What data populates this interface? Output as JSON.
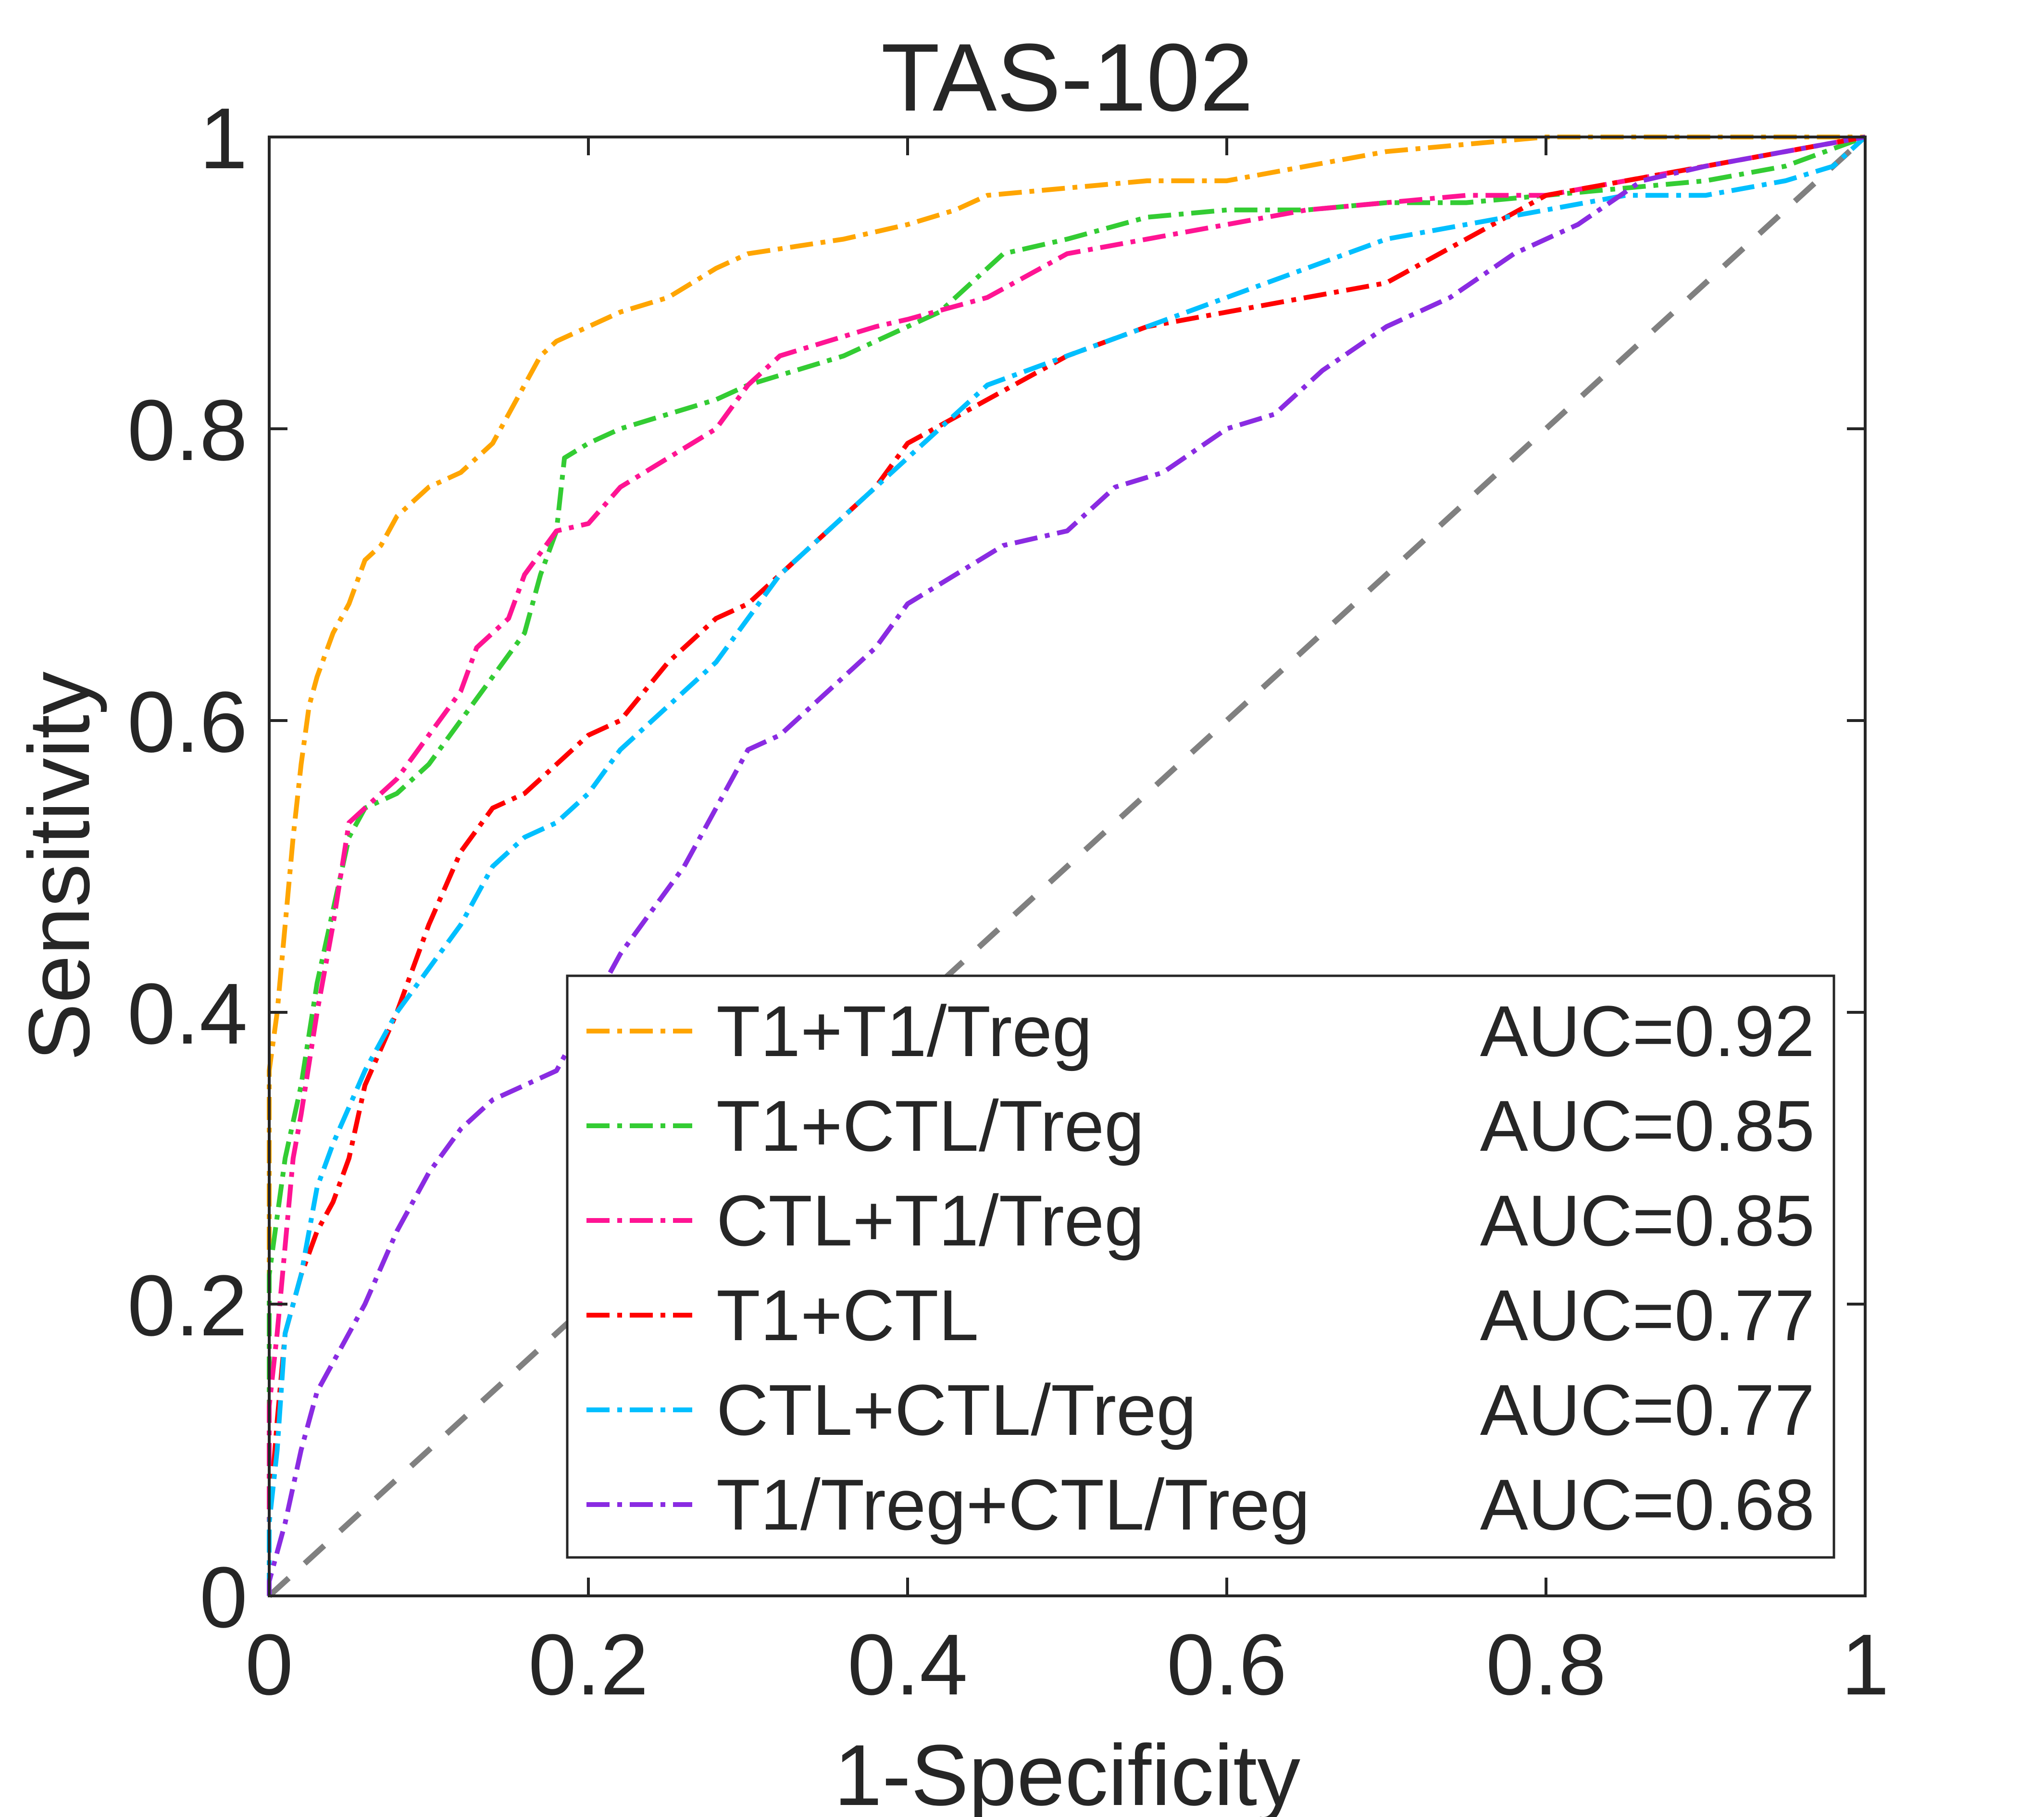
{
  "chart_data": {
    "type": "line",
    "title": "TAS-102",
    "xlabel": "1-Specificity",
    "ylabel": "Sensitivity",
    "xlim": [
      0,
      1
    ],
    "ylim": [
      0,
      1
    ],
    "xticks": [
      {
        "value": 0,
        "label": "0"
      },
      {
        "value": 0.2,
        "label": "0.2"
      },
      {
        "value": 0.4,
        "label": "0.4"
      },
      {
        "value": 0.6,
        "label": "0.6"
      },
      {
        "value": 0.8,
        "label": "0.8"
      },
      {
        "value": 1,
        "label": "1"
      }
    ],
    "yticks": [
      {
        "value": 0,
        "label": "0"
      },
      {
        "value": 0.2,
        "label": "0.2"
      },
      {
        "value": 0.4,
        "label": "0.4"
      },
      {
        "value": 0.6,
        "label": "0.6"
      },
      {
        "value": 0.8,
        "label": "0.8"
      },
      {
        "value": 1,
        "label": "1"
      }
    ],
    "grid": false,
    "legend_position": "bottom-right",
    "reference_line": {
      "x": [
        0,
        1
      ],
      "y": [
        0,
        1
      ],
      "color": "#808080",
      "style": "dashed"
    },
    "series": [
      {
        "name": "T1+T1/Treg",
        "auc_label": "AUC=0.92",
        "color": "#FFA500",
        "x": [
          0,
          0,
          0.005,
          0.01,
          0.015,
          0.02,
          0.025,
          0.03,
          0.04,
          0.05,
          0.06,
          0.07,
          0.08,
          0.1,
          0.12,
          0.14,
          0.15,
          0.16,
          0.17,
          0.18,
          0.2,
          0.22,
          0.25,
          0.28,
          0.3,
          0.33,
          0.36,
          0.4,
          0.43,
          0.45,
          0.5,
          0.55,
          0.6,
          0.65,
          0.7,
          0.75,
          0.8,
          0.85,
          0.9,
          1
        ],
        "y": [
          0,
          0.36,
          0.4,
          0.46,
          0.52,
          0.57,
          0.61,
          0.63,
          0.66,
          0.68,
          0.71,
          0.72,
          0.74,
          0.76,
          0.77,
          0.79,
          0.81,
          0.83,
          0.85,
          0.86,
          0.87,
          0.88,
          0.89,
          0.91,
          0.92,
          0.925,
          0.93,
          0.94,
          0.95,
          0.96,
          0.965,
          0.97,
          0.97,
          0.98,
          0.99,
          0.995,
          1,
          1,
          1,
          1
        ]
      },
      {
        "name": "T1+CTL/Treg",
        "auc_label": "AUC=0.85",
        "color": "#33CC33",
        "x": [
          0,
          0,
          0.005,
          0.01,
          0.02,
          0.03,
          0.04,
          0.05,
          0.06,
          0.08,
          0.1,
          0.12,
          0.14,
          0.16,
          0.17,
          0.18,
          0.185,
          0.2,
          0.22,
          0.25,
          0.28,
          0.3,
          0.33,
          0.36,
          0.38,
          0.42,
          0.44,
          0.46,
          0.48,
          0.5,
          0.55,
          0.6,
          0.65,
          0.7,
          0.75,
          0.8,
          0.85,
          0.9,
          0.95,
          1
        ],
        "y": [
          0,
          0.22,
          0.26,
          0.3,
          0.35,
          0.42,
          0.47,
          0.52,
          0.54,
          0.55,
          0.57,
          0.6,
          0.63,
          0.66,
          0.7,
          0.73,
          0.78,
          0.79,
          0.8,
          0.81,
          0.82,
          0.83,
          0.84,
          0.85,
          0.86,
          0.88,
          0.9,
          0.92,
          0.925,
          0.93,
          0.945,
          0.95,
          0.95,
          0.955,
          0.955,
          0.96,
          0.965,
          0.97,
          0.98,
          1
        ]
      },
      {
        "name": "CTL+T1/Treg",
        "auc_label": "AUC=0.85",
        "color": "#FF1493",
        "x": [
          0,
          0,
          0.005,
          0.01,
          0.015,
          0.02,
          0.03,
          0.04,
          0.05,
          0.06,
          0.08,
          0.1,
          0.12,
          0.13,
          0.15,
          0.16,
          0.18,
          0.2,
          0.22,
          0.25,
          0.28,
          0.3,
          0.32,
          0.35,
          0.38,
          0.4,
          0.45,
          0.5,
          0.55,
          0.6,
          0.65,
          0.7,
          0.75,
          0.8,
          0.85,
          0.9,
          1
        ],
        "y": [
          0,
          0.13,
          0.18,
          0.24,
          0.3,
          0.33,
          0.4,
          0.46,
          0.53,
          0.54,
          0.56,
          0.59,
          0.62,
          0.65,
          0.67,
          0.7,
          0.73,
          0.735,
          0.76,
          0.78,
          0.8,
          0.83,
          0.85,
          0.86,
          0.87,
          0.875,
          0.89,
          0.92,
          0.93,
          0.94,
          0.95,
          0.955,
          0.96,
          0.96,
          0.97,
          0.98,
          1
        ]
      },
      {
        "name": "T1+CTL",
        "auc_label": "AUC=0.77",
        "color": "#FF0000",
        "x": [
          0,
          0,
          0.005,
          0.01,
          0.02,
          0.03,
          0.04,
          0.05,
          0.06,
          0.08,
          0.1,
          0.12,
          0.14,
          0.16,
          0.18,
          0.2,
          0.22,
          0.25,
          0.28,
          0.3,
          0.32,
          0.35,
          0.38,
          0.4,
          0.45,
          0.5,
          0.55,
          0.6,
          0.65,
          0.7,
          0.75,
          0.8,
          0.85,
          0.9,
          1
        ],
        "y": [
          0,
          0.05,
          0.12,
          0.18,
          0.22,
          0.25,
          0.27,
          0.3,
          0.35,
          0.4,
          0.46,
          0.51,
          0.54,
          0.55,
          0.57,
          0.59,
          0.6,
          0.64,
          0.67,
          0.68,
          0.7,
          0.73,
          0.76,
          0.79,
          0.82,
          0.85,
          0.87,
          0.88,
          0.89,
          0.9,
          0.93,
          0.96,
          0.97,
          0.98,
          1
        ]
      },
      {
        "name": "CTL+CTL/Treg",
        "auc_label": "AUC=0.77",
        "color": "#00BFFF",
        "x": [
          0,
          0,
          0.005,
          0.01,
          0.02,
          0.03,
          0.04,
          0.06,
          0.08,
          0.1,
          0.12,
          0.14,
          0.16,
          0.18,
          0.2,
          0.22,
          0.25,
          0.28,
          0.3,
          0.32,
          0.35,
          0.38,
          0.4,
          0.45,
          0.5,
          0.55,
          0.6,
          0.65,
          0.7,
          0.75,
          0.8,
          0.85,
          0.9,
          0.95,
          0.98,
          1
        ],
        "y": [
          0,
          0.05,
          0.1,
          0.18,
          0.22,
          0.28,
          0.31,
          0.36,
          0.4,
          0.43,
          0.46,
          0.5,
          0.52,
          0.53,
          0.55,
          0.58,
          0.61,
          0.64,
          0.67,
          0.7,
          0.73,
          0.76,
          0.78,
          0.83,
          0.85,
          0.87,
          0.89,
          0.91,
          0.93,
          0.94,
          0.95,
          0.96,
          0.96,
          0.97,
          0.98,
          1
        ]
      },
      {
        "name": "T1/Treg+CTL/Treg",
        "auc_label": "AUC=0.68",
        "color": "#8A2BE2",
        "x": [
          0,
          0,
          0.01,
          0.02,
          0.03,
          0.04,
          0.06,
          0.08,
          0.1,
          0.12,
          0.14,
          0.16,
          0.18,
          0.2,
          0.22,
          0.24,
          0.26,
          0.28,
          0.3,
          0.32,
          0.35,
          0.38,
          0.4,
          0.43,
          0.46,
          0.5,
          0.53,
          0.56,
          0.6,
          0.63,
          0.66,
          0.7,
          0.74,
          0.78,
          0.82,
          0.86,
          0.9,
          0.95,
          1
        ],
        "y": [
          0,
          0.01,
          0.05,
          0.1,
          0.14,
          0.16,
          0.2,
          0.25,
          0.29,
          0.32,
          0.34,
          0.35,
          0.36,
          0.4,
          0.44,
          0.47,
          0.5,
          0.54,
          0.58,
          0.59,
          0.62,
          0.65,
          0.68,
          0.7,
          0.72,
          0.73,
          0.76,
          0.77,
          0.8,
          0.81,
          0.84,
          0.87,
          0.89,
          0.92,
          0.94,
          0.97,
          0.98,
          0.99,
          1
        ]
      }
    ]
  }
}
